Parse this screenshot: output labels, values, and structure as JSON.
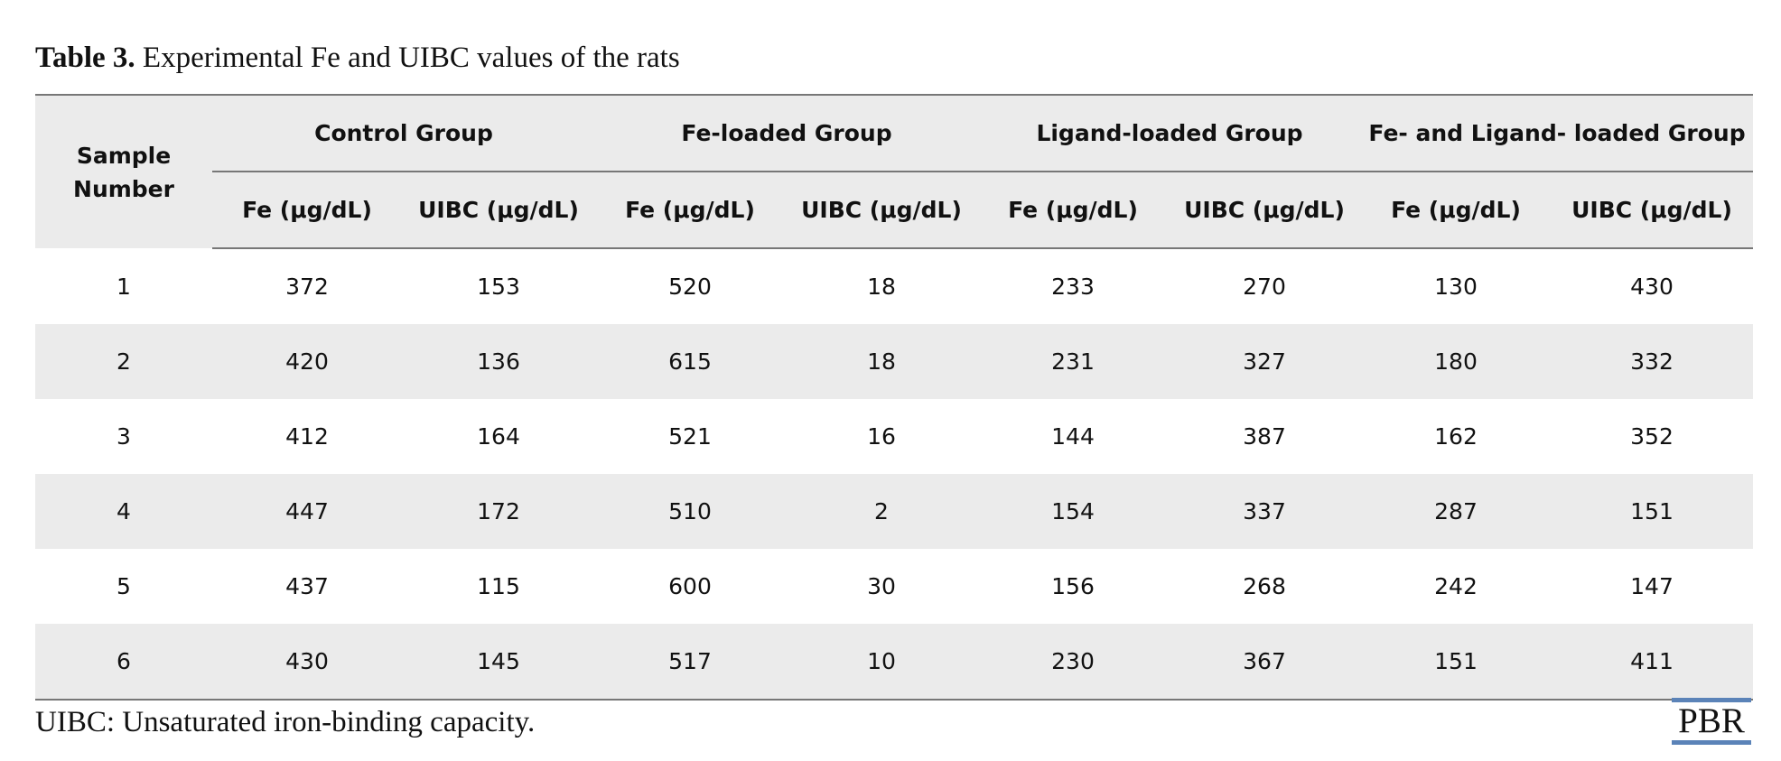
{
  "caption": {
    "label": "Table 3.",
    "text": "Experimental Fe and UIBC values of the rats"
  },
  "table": {
    "sample_header": "Sample Number",
    "groups": [
      {
        "name": "Control Group"
      },
      {
        "name": "Fe-loaded Group"
      },
      {
        "name": "Ligand-loaded Group"
      },
      {
        "name": "Fe- and Ligand- loaded Group"
      }
    ],
    "subheaders": [
      "Fe (μg/dL)",
      "UIBC (μg/dL)",
      "Fe (μg/dL)",
      "UIBC (μg/dL)",
      "Fe (μg/dL)",
      "UIBC (μg/dL)",
      "Fe (μg/dL)",
      "UIBC (μg/dL)"
    ],
    "rows": [
      [
        "1",
        "372",
        "153",
        "520",
        "18",
        "233",
        "270",
        "130",
        "430"
      ],
      [
        "2",
        "420",
        "136",
        "615",
        "18",
        "231",
        "327",
        "180",
        "332"
      ],
      [
        "3",
        "412",
        "164",
        "521",
        "16",
        "144",
        "387",
        "162",
        "352"
      ],
      [
        "4",
        "447",
        "172",
        "510",
        "2",
        "154",
        "337",
        "287",
        "151"
      ],
      [
        "5",
        "437",
        "115",
        "600",
        "30",
        "156",
        "268",
        "242",
        "147"
      ],
      [
        "6",
        "430",
        "145",
        "517",
        "10",
        "230",
        "367",
        "151",
        "411"
      ]
    ]
  },
  "footnote": "UIBC: Unsaturated iron-binding capacity.",
  "logo": {
    "text": "PBR",
    "accent_color": "#5b83b8"
  },
  "colors": {
    "row_shade": "#ebebeb",
    "rule": "#777777"
  }
}
